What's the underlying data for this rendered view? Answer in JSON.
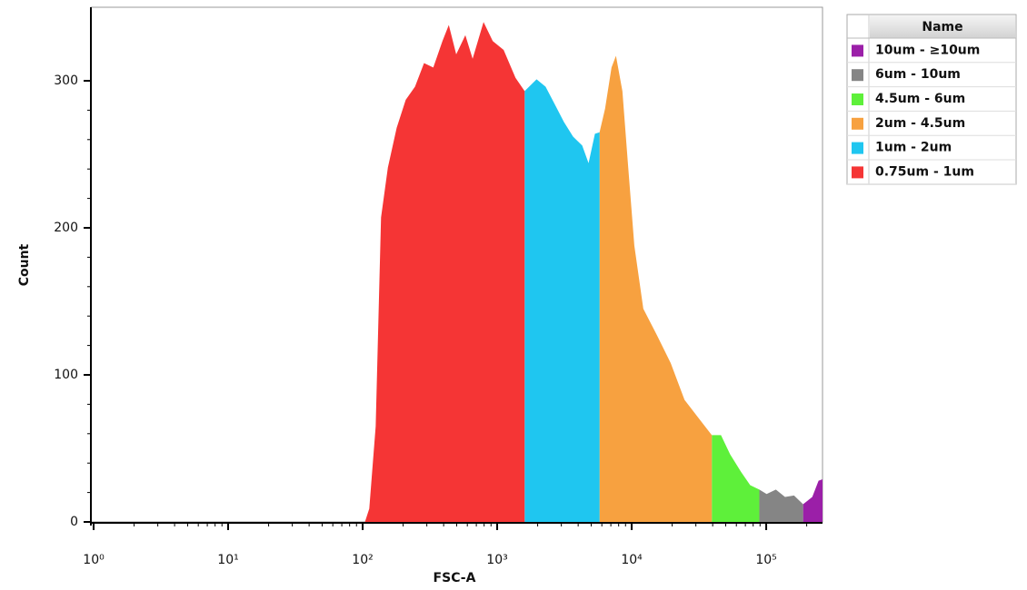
{
  "chart_data": {
    "type": "area",
    "x_label": "FSC-A",
    "y_label": "Count",
    "legend_title": "Name",
    "x_scale": "log",
    "xlim": [
      1,
      262144
    ],
    "xticks": [
      {
        "value": 1,
        "label": "10⁰"
      },
      {
        "value": 10,
        "label": "10¹"
      },
      {
        "value": 100,
        "label": "10²"
      },
      {
        "value": 1000,
        "label": "10³"
      },
      {
        "value": 10000,
        "label": "10⁴"
      },
      {
        "value": 100000,
        "label": "10⁵"
      }
    ],
    "ylim": [
      0,
      350
    ],
    "yticks": [
      0,
      100,
      200,
      300
    ],
    "series": [
      {
        "name": "10um - ≥10um",
        "color": "#9b1fa8",
        "x": [
          188000,
          220000,
          245000,
          262144
        ],
        "values": [
          12,
          17,
          28,
          29
        ]
      },
      {
        "name": "6um - 10um",
        "color": "#858585",
        "x": [
          88900,
          100700,
          118000,
          138000,
          161000,
          188000
        ],
        "values": [
          22,
          19,
          22,
          17,
          18,
          12
        ]
      },
      {
        "name": "4.5um - 6um",
        "color": "#5ef03a",
        "x": [
          39400,
          46100,
          53900,
          65000,
          76000,
          88900
        ],
        "values": [
          59,
          59,
          46,
          34,
          25,
          22
        ]
      },
      {
        "name": "2um - 4.5um",
        "color": "#f7a140",
        "x": [
          5770,
          6340,
          7080,
          7640,
          8530,
          9370,
          10460,
          12200,
          15400,
          19500,
          24700,
          31200,
          39400
        ],
        "values": [
          265,
          281,
          309,
          317,
          293,
          244,
          188,
          145,
          127,
          108,
          83,
          71,
          59
        ]
      },
      {
        "name": "1um - 2um",
        "color": "#1fc6f0",
        "x": [
          1600,
          1963,
          2290,
          2680,
          3135,
          3666,
          4285,
          4780,
          5330,
          5770
        ],
        "values": [
          293,
          301,
          296,
          284,
          272,
          262,
          256,
          244,
          264,
          265
        ]
      },
      {
        "name": "0.75um - 1um",
        "color": "#f53535",
        "x": [
          104,
          112,
          125,
          137,
          154,
          179,
          209,
          245,
          286,
          335,
          392,
          437,
          496,
          580,
          657,
          792,
          927,
          1117,
          1369,
          1600
        ],
        "values": [
          0,
          9,
          65,
          207,
          241,
          268,
          287,
          296,
          312,
          309,
          327,
          338,
          318,
          331,
          315,
          340,
          327,
          321,
          302,
          293
        ]
      }
    ]
  }
}
